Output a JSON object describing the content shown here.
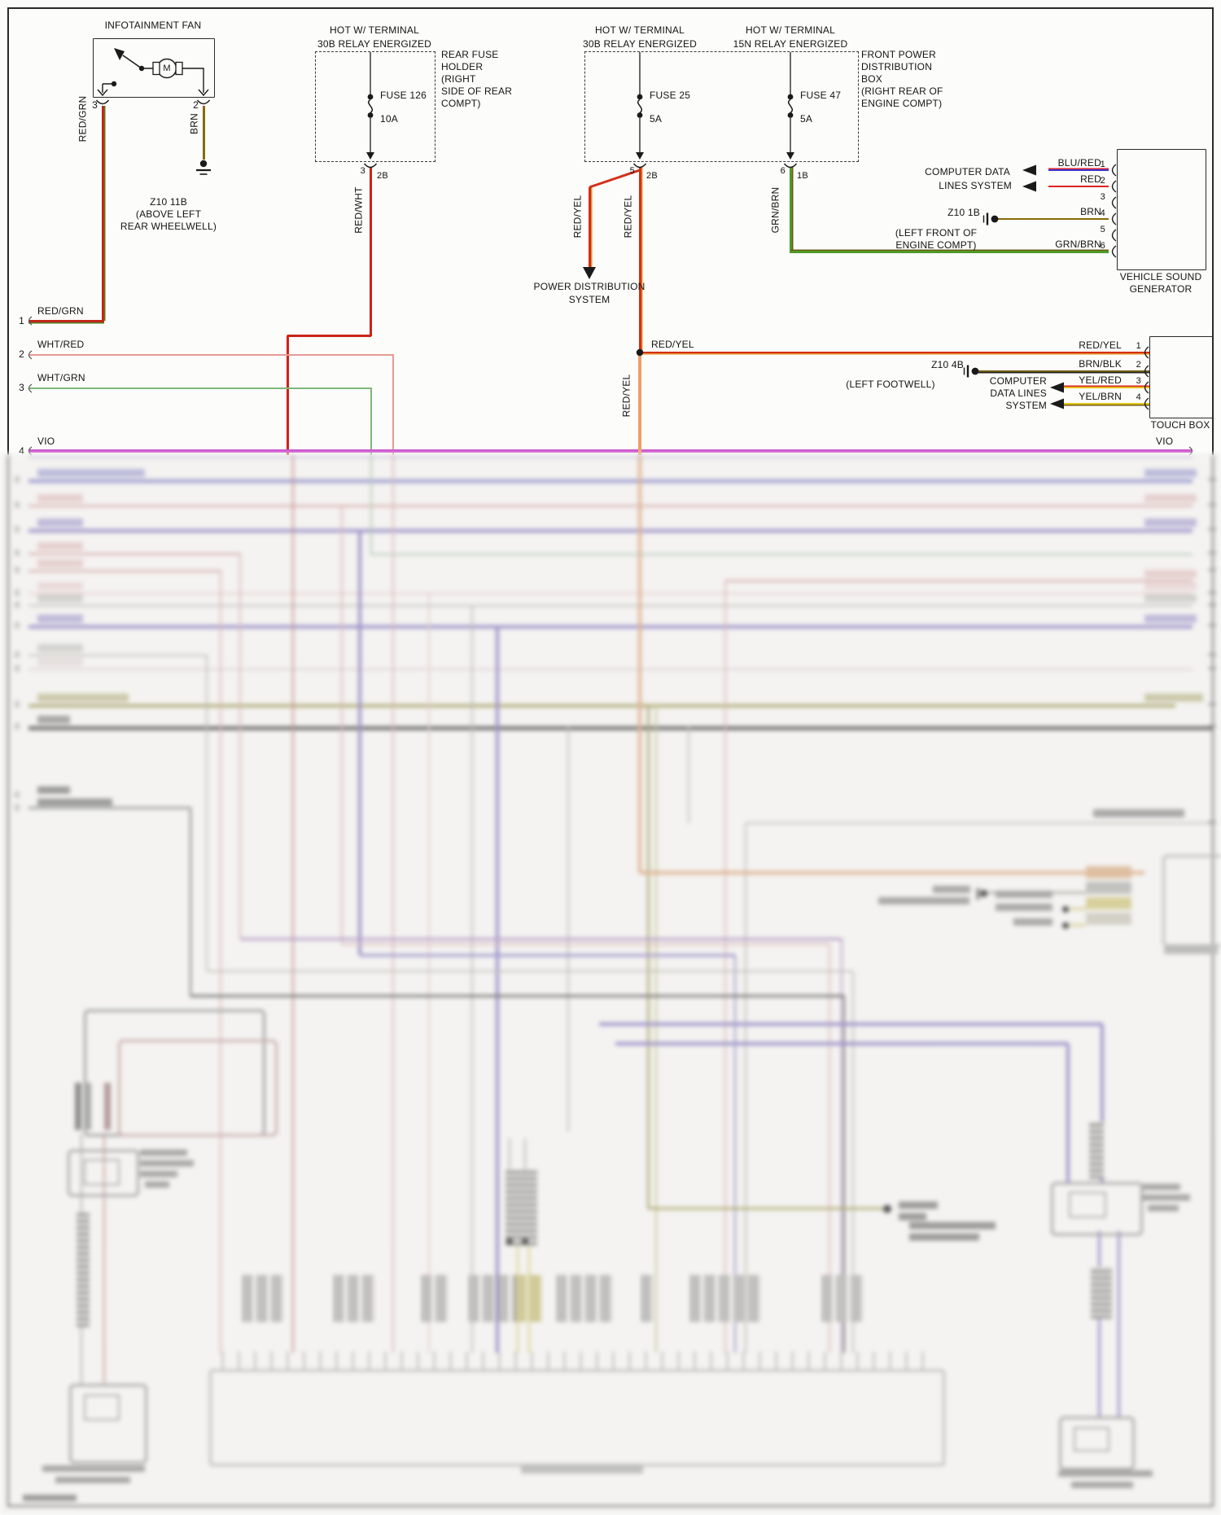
{
  "title": "vehicle audio wiring diagram",
  "labels": {
    "fan_title": "INFOTAINMENT FAN",
    "motor": "M",
    "fan_pin3": "3",
    "fan_pin2": "2",
    "w_red_grn": "RED/GRN",
    "w_brn": "BRN",
    "gnd_fan": "Z10 11B",
    "gnd_fan_d1": "(ABOVE LEFT",
    "gnd_fan_d2": "REAR WHEELWELL)",
    "hot1a": "HOT W/ TERMINAL",
    "hot1b": "30B RELAY ENERGIZED",
    "fuse126": "FUSE 126",
    "fuse126_a": "10A",
    "rfh1": "REAR FUSE",
    "rfh2": "HOLDER",
    "rfh3": "(RIGHT",
    "rfh4": "SIDE OF REAR",
    "rfh5": "COMPT)",
    "f126_pin": "3",
    "f126_conn": "2B",
    "w_red_wht": "RED/WHT",
    "hot2a": "HOT W/ TERMINAL",
    "hot2b": "30B RELAY ENERGIZED",
    "fuse25": "FUSE 25",
    "fuse25_a": "5A",
    "f25_pin": "5",
    "f25_conn": "2B",
    "w_red_yel_l": "RED/YEL",
    "w_red_yel_r": "RED/YEL",
    "pds1": "POWER DISTRIBUTION",
    "pds2": "SYSTEM",
    "hot3a": "HOT W/ TERMINAL",
    "hot3b": "15N RELAY ENERGIZED",
    "fuse47": "FUSE 47",
    "fuse47_a": "5A",
    "f47_pin": "6",
    "f47_conn": "1B",
    "w_grn_brn": "GRN/BRN",
    "fpdb1": "FRONT POWER",
    "fpdb2": "DISTRIBUTION",
    "fpdb3": "BOX",
    "fpdb4": "(RIGHT REAR OF",
    "fpdb5": "ENGINE COMPT)",
    "cdl_a1": "COMPUTER DATA",
    "cdl_a2": "LINES SYSTEM",
    "vsg_w1": "BLU/RED",
    "vsg_w2": "RED",
    "vsg_w4": "BRN",
    "vsg_w6": "GRN/BRN",
    "vsg_p1": "1",
    "vsg_p2": "2",
    "vsg_p3": "3",
    "vsg_p4": "4",
    "vsg_p5": "5",
    "vsg_p6": "6",
    "gnd1": "Z10 1B",
    "gnd1_d1": "(LEFT FRONT OF",
    "gnd1_d2": "ENGINE COMPT)",
    "vsg_t1": "VEHICLE SOUND",
    "vsg_t2": "GENERATOR",
    "row1_n": "1",
    "row1_l": "RED/GRN",
    "row2_n": "2",
    "row2_l": "WHT/RED",
    "row3_n": "3",
    "row3_l": "WHT/GRN",
    "row4_n": "4",
    "row4_l": "VIO",
    "vio_r": "VIO",
    "ry_mid": "RED/YEL",
    "ry_vert": "RED/YEL",
    "tb_w1": "RED/YEL",
    "tb_w2": "BRN/BLK",
    "tb_w3": "YEL/RED",
    "tb_w4": "YEL/BRN",
    "tb_p1": "1",
    "tb_p2": "2",
    "tb_p3": "3",
    "tb_p4": "4",
    "gnd2": "Z10 4B",
    "gnd2_d": "(LEFT FOOTWELL)",
    "cdl_b1": "COMPUTER",
    "cdl_b2": "DATA LINES",
    "cdl_b3": "SYSTEM",
    "tb_t": "TOUCH BOX"
  },
  "colors": {
    "ink": "#1a1a1a",
    "frame": "#2a2a2a",
    "blur_bg": "#f4f3f0",
    "wires": {
      "red_grn": {
        "c": "#c0281c",
        "e": "#557f1c"
      },
      "brn": {
        "c": "#8a6a08"
      },
      "red_wht": {
        "c": "#cc2418"
      },
      "red_yel": {
        "c": "#d2301a",
        "e": "#e89020"
      },
      "red_yel_soft": {
        "c": "#ef9f66"
      },
      "grn_brn": {
        "c": "#4f9a26",
        "e": "#6b5b1a"
      },
      "blu_red": {
        "c": "#3c35c8",
        "e": "#dd2233"
      },
      "red": {
        "c": "#dd2222"
      },
      "brn_blk": {
        "c": "#6e5c10",
        "e": "#222222"
      },
      "yel_red": {
        "c": "#e4c01c",
        "e": "#dd2222"
      },
      "yel_brn": {
        "c": "#ddc81e",
        "e": "#7a5a10"
      },
      "wht_red": {
        "c": "#e59a94"
      },
      "wht_grn": {
        "c": "#7cb878"
      },
      "vio": {
        "c": "#cc4ecc"
      }
    },
    "blur": {
      "violet": "#8d7cdc",
      "blue": "#8082e2",
      "pink": "#e6a9a9",
      "pink_soft": "#efc0c0",
      "red_soft": "#d9756d",
      "gray": "#b3b3ab",
      "dark": "#5c5c5a",
      "olive": "#a9a14b",
      "olive_soft": "#c6bd62",
      "yellow": "#d8c83c",
      "orange": "#f0a26a",
      "green": "#9cc49c",
      "steel": "#9a9a97",
      "mauve": "#b48ad2"
    }
  }
}
